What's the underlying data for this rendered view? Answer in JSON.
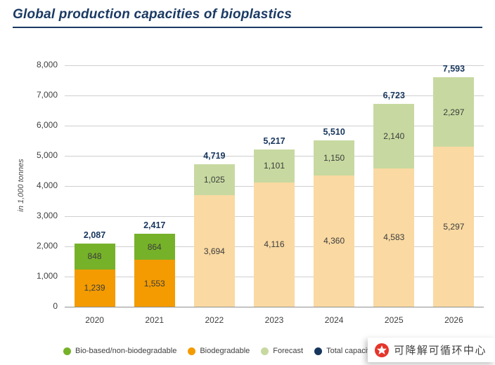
{
  "page": {
    "title": "Global production capacities of bioplastics"
  },
  "chart_data": {
    "type": "bar",
    "stacked": true,
    "title": "Global production capacities of bioplastics",
    "ylabel": "in 1,000 tonnes",
    "ylim": [
      0,
      8000
    ],
    "ytick_step": 1000,
    "grid": true,
    "legend_position": "bottom",
    "categories": [
      "2020",
      "2021",
      "2022",
      "2023",
      "2024",
      "2025",
      "2026"
    ],
    "series": [
      {
        "name": "Biodegradable",
        "values": [
          1239,
          1553,
          3694,
          4116,
          4360,
          4583,
          5297
        ]
      },
      {
        "name": "Bio-based/non-biodegradable",
        "values": [
          848,
          864,
          1025,
          1101,
          1150,
          2140,
          2297
        ]
      }
    ],
    "totals": [
      2087,
      2417,
      4719,
      5217,
      5510,
      6723,
      7593
    ],
    "forecast_from_index": 2,
    "colors": {
      "biodegradable": "#f39b00",
      "biobased": "#76b229",
      "biodegradable_forecast": "#fad9a2",
      "biobased_forecast": "#c7d9a0",
      "total_label": "#17365d",
      "gridline": "#cfcfcf"
    }
  },
  "legend": [
    {
      "label": "Bio-based/non-biodegradable",
      "color": "#76b229"
    },
    {
      "label": "Biodegradable",
      "color": "#f39b00"
    },
    {
      "label": "Forecast",
      "color": "#c7d9a0"
    },
    {
      "label": "Total capacity",
      "color": "#17365d"
    }
  ],
  "watermark": {
    "text": "可降解可循环中心"
  }
}
